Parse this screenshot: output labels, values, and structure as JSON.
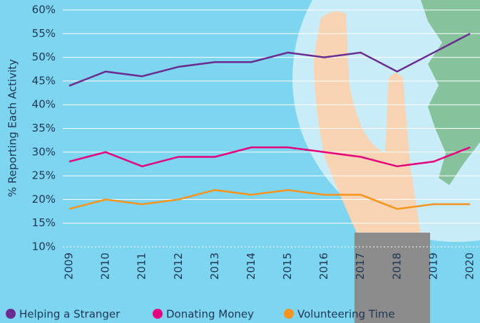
{
  "chart_data": {
    "type": "line",
    "y_label": "% Reporting Each Activity",
    "categories": [
      "2009",
      "2010",
      "2011",
      "2012",
      "2013",
      "2014",
      "2015",
      "2016",
      "2017",
      "2018",
      "2019",
      "2020"
    ],
    "series": [
      {
        "name": "Helping a Stranger",
        "color": "#6b2c91",
        "values": [
          44,
          47,
          46,
          48,
          49,
          49,
          51,
          50,
          51,
          47,
          51,
          55
        ]
      },
      {
        "name": "Donating Money",
        "color": "#e5007d",
        "values": [
          28,
          30,
          27,
          29,
          29,
          31,
          31,
          30,
          29,
          27,
          28,
          31
        ]
      },
      {
        "name": "Volunteering Time",
        "color": "#f7941d",
        "values": [
          18,
          20,
          19,
          20,
          22,
          21,
          22,
          21,
          21,
          18,
          19,
          19
        ]
      }
    ],
    "ylim": [
      10,
      60
    ],
    "yticks": [
      {
        "value": 10,
        "label": "10%"
      },
      {
        "value": 15,
        "label": "15%"
      },
      {
        "value": 20,
        "label": "20%"
      },
      {
        "value": 25,
        "label": "25%"
      },
      {
        "value": 30,
        "label": "30%"
      },
      {
        "value": 35,
        "label": "35%"
      },
      {
        "value": 40,
        "label": "40%"
      },
      {
        "value": 45,
        "label": "45%"
      },
      {
        "value": 50,
        "label": "50%"
      },
      {
        "value": 55,
        "label": "55%"
      },
      {
        "value": 60,
        "label": "60%"
      }
    ],
    "grid": true
  }
}
